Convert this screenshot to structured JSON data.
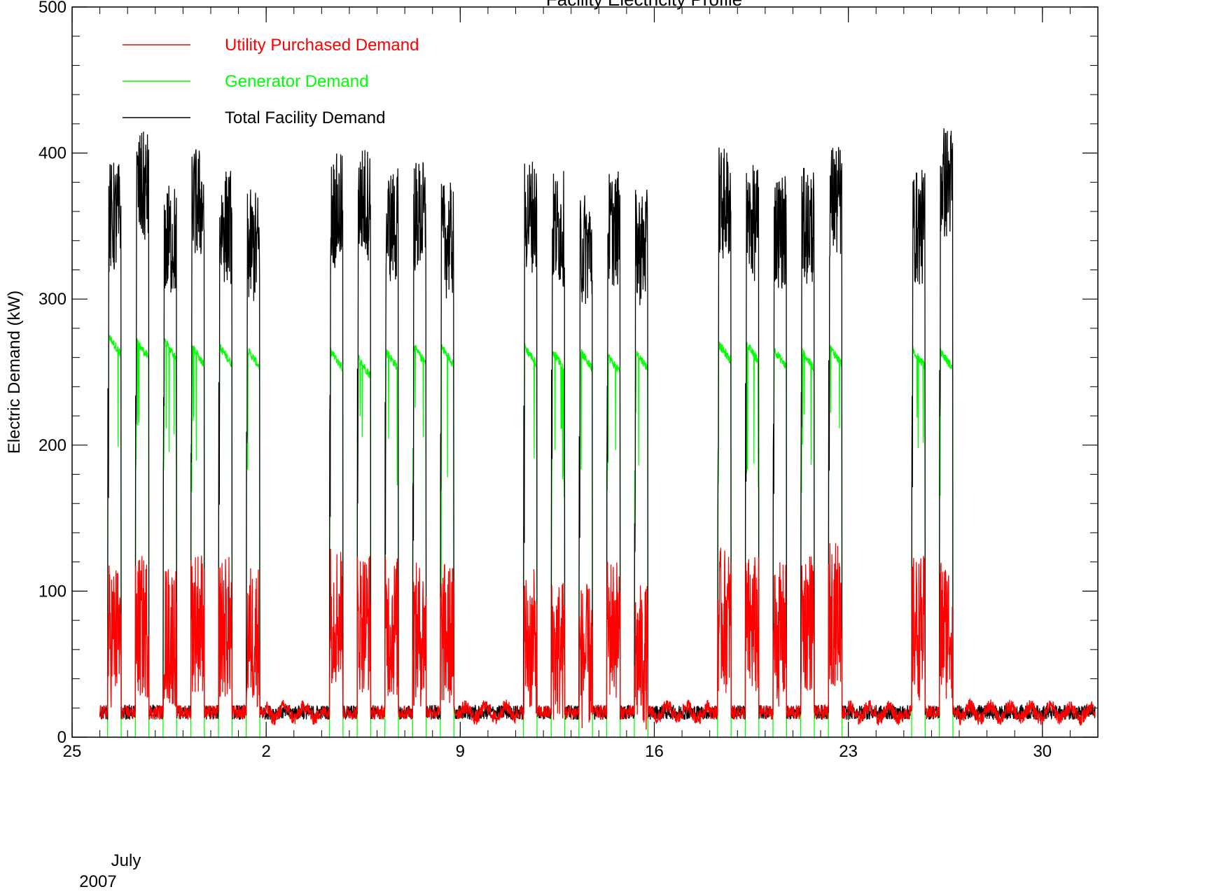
{
  "chart_data": {
    "type": "line",
    "title": "Facility Electricity Profile",
    "ylabel": "Electric Demand (kW)",
    "xlabel": "",
    "ylim": [
      0,
      500
    ],
    "xlim": [
      "2007-06-25",
      "2007-08-01"
    ],
    "yticks": [
      0,
      100,
      200,
      300,
      400,
      500
    ],
    "xticks": [
      {
        "date": "2007-06-25",
        "label": "25"
      },
      {
        "date": "2007-07-02",
        "label": "2"
      },
      {
        "date": "2007-07-09",
        "label": "9"
      },
      {
        "date": "2007-07-16",
        "label": "16"
      },
      {
        "date": "2007-07-23",
        "label": "23"
      },
      {
        "date": "2007-07-30",
        "label": "30"
      }
    ],
    "x_month_label": "July",
    "x_year_label": "2007",
    "grid": false,
    "legend": "top-left",
    "data_start": "2007-06-26",
    "data_end": "2007-07-31",
    "series": [
      {
        "name": "Utility Purchased Demand",
        "color": "#ff0000",
        "profile": {
          "night_kw": 17,
          "day_kw": [
            70,
            75,
            70,
            80,
            75,
            70,
            0,
            0,
            85,
            80,
            75,
            70,
            70,
            0,
            0,
            65,
            60,
            55,
            75,
            55,
            0,
            0,
            80,
            75,
            70,
            80,
            85,
            0,
            0,
            75,
            75
          ]
        }
      },
      {
        "name": "Generator Demand",
        "color": "#00ff00",
        "profile": {
          "night_kw": 0,
          "day_kw": [
            275,
            272,
            272,
            268,
            268,
            266,
            0,
            0,
            265,
            260,
            265,
            268,
            268,
            0,
            0,
            268,
            265,
            265,
            262,
            265,
            0,
            0,
            270,
            270,
            266,
            265,
            268,
            0,
            0,
            266,
            265
          ]
        }
      },
      {
        "name": "Total Facility Demand",
        "color": "#000000",
        "profile": {
          "night_kw": 17,
          "day_peak_kw": [
            395,
            415,
            380,
            405,
            390,
            375,
            0,
            0,
            400,
            406,
            390,
            396,
            380,
            0,
            0,
            398,
            388,
            375,
            388,
            375,
            0,
            0,
            405,
            392,
            387,
            390,
            407,
            0,
            0,
            389,
            420
          ]
        }
      }
    ]
  }
}
